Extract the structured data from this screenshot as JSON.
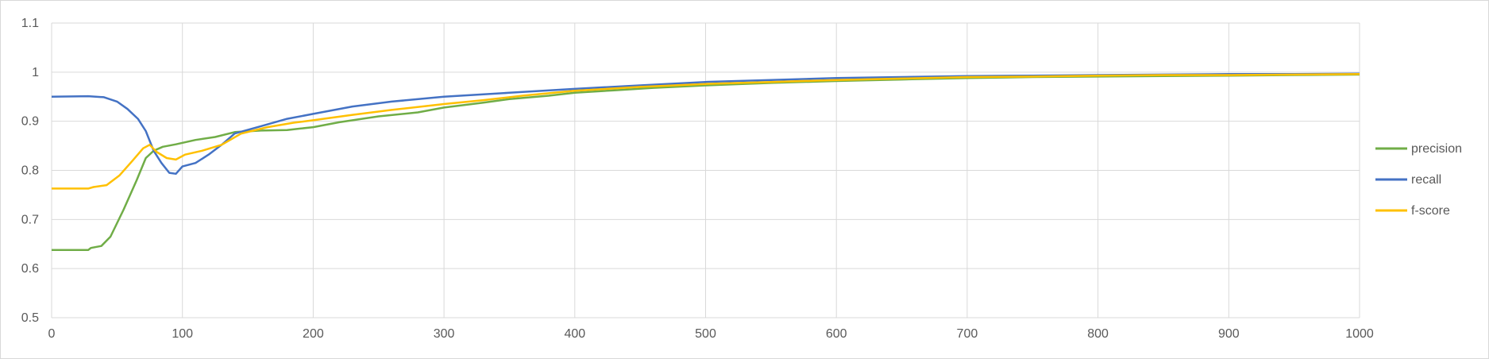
{
  "chart_data": {
    "type": "line",
    "title": "",
    "xlabel": "",
    "ylabel": "",
    "xlim": [
      0,
      1000
    ],
    "ylim": [
      0.5,
      1.1
    ],
    "x_ticks": [
      0,
      100,
      200,
      300,
      400,
      500,
      600,
      700,
      800,
      900,
      1000
    ],
    "y_ticks": [
      0.5,
      0.6,
      0.7,
      0.8,
      0.9,
      1,
      1.1
    ],
    "grid": true,
    "legend_position": "right",
    "series": [
      {
        "name": "precision",
        "color": "#70ad47",
        "points": [
          [
            0,
            0.638
          ],
          [
            28,
            0.638
          ],
          [
            30,
            0.642
          ],
          [
            38,
            0.646
          ],
          [
            45,
            0.665
          ],
          [
            55,
            0.72
          ],
          [
            65,
            0.78
          ],
          [
            72,
            0.825
          ],
          [
            78,
            0.84
          ],
          [
            85,
            0.848
          ],
          [
            95,
            0.853
          ],
          [
            110,
            0.862
          ],
          [
            125,
            0.868
          ],
          [
            140,
            0.878
          ],
          [
            160,
            0.881
          ],
          [
            180,
            0.882
          ],
          [
            190,
            0.885
          ],
          [
            200,
            0.888
          ],
          [
            220,
            0.898
          ],
          [
            250,
            0.91
          ],
          [
            280,
            0.918
          ],
          [
            300,
            0.928
          ],
          [
            330,
            0.938
          ],
          [
            350,
            0.945
          ],
          [
            380,
            0.952
          ],
          [
            400,
            0.958
          ],
          [
            430,
            0.963
          ],
          [
            460,
            0.968
          ],
          [
            500,
            0.973
          ],
          [
            550,
            0.978
          ],
          [
            600,
            0.982
          ],
          [
            650,
            0.985
          ],
          [
            700,
            0.988
          ],
          [
            750,
            0.99
          ],
          [
            800,
            0.991
          ],
          [
            850,
            0.992
          ],
          [
            900,
            0.993
          ],
          [
            950,
            0.994
          ],
          [
            1000,
            0.995
          ]
        ]
      },
      {
        "name": "recall",
        "color": "#4472c4",
        "points": [
          [
            0,
            0.95
          ],
          [
            28,
            0.951
          ],
          [
            40,
            0.949
          ],
          [
            50,
            0.94
          ],
          [
            58,
            0.925
          ],
          [
            66,
            0.905
          ],
          [
            72,
            0.88
          ],
          [
            78,
            0.84
          ],
          [
            84,
            0.815
          ],
          [
            90,
            0.795
          ],
          [
            95,
            0.793
          ],
          [
            100,
            0.808
          ],
          [
            110,
            0.815
          ],
          [
            120,
            0.832
          ],
          [
            130,
            0.852
          ],
          [
            140,
            0.875
          ],
          [
            160,
            0.89
          ],
          [
            180,
            0.905
          ],
          [
            200,
            0.915
          ],
          [
            230,
            0.93
          ],
          [
            260,
            0.94
          ],
          [
            300,
            0.95
          ],
          [
            350,
            0.958
          ],
          [
            400,
            0.966
          ],
          [
            450,
            0.973
          ],
          [
            500,
            0.98
          ],
          [
            550,
            0.984
          ],
          [
            600,
            0.988
          ],
          [
            650,
            0.99
          ],
          [
            700,
            0.992
          ],
          [
            750,
            0.993
          ],
          [
            800,
            0.994
          ],
          [
            850,
            0.995
          ],
          [
            900,
            0.996
          ],
          [
            950,
            0.996
          ],
          [
            1000,
            0.997
          ]
        ]
      },
      {
        "name": "f-score",
        "color": "#ffc000",
        "points": [
          [
            0,
            0.763
          ],
          [
            28,
            0.763
          ],
          [
            32,
            0.766
          ],
          [
            42,
            0.77
          ],
          [
            52,
            0.79
          ],
          [
            62,
            0.82
          ],
          [
            70,
            0.845
          ],
          [
            75,
            0.852
          ],
          [
            80,
            0.838
          ],
          [
            88,
            0.825
          ],
          [
            95,
            0.822
          ],
          [
            102,
            0.832
          ],
          [
            115,
            0.84
          ],
          [
            130,
            0.852
          ],
          [
            145,
            0.875
          ],
          [
            165,
            0.888
          ],
          [
            185,
            0.897
          ],
          [
            200,
            0.902
          ],
          [
            230,
            0.913
          ],
          [
            260,
            0.923
          ],
          [
            300,
            0.935
          ],
          [
            330,
            0.943
          ],
          [
            360,
            0.952
          ],
          [
            400,
            0.962
          ],
          [
            450,
            0.97
          ],
          [
            500,
            0.976
          ],
          [
            550,
            0.98
          ],
          [
            600,
            0.984
          ],
          [
            650,
            0.987
          ],
          [
            700,
            0.99
          ],
          [
            750,
            0.991
          ],
          [
            800,
            0.993
          ],
          [
            850,
            0.994
          ],
          [
            900,
            0.994
          ],
          [
            950,
            0.995
          ],
          [
            1000,
            0.996
          ]
        ]
      }
    ]
  }
}
